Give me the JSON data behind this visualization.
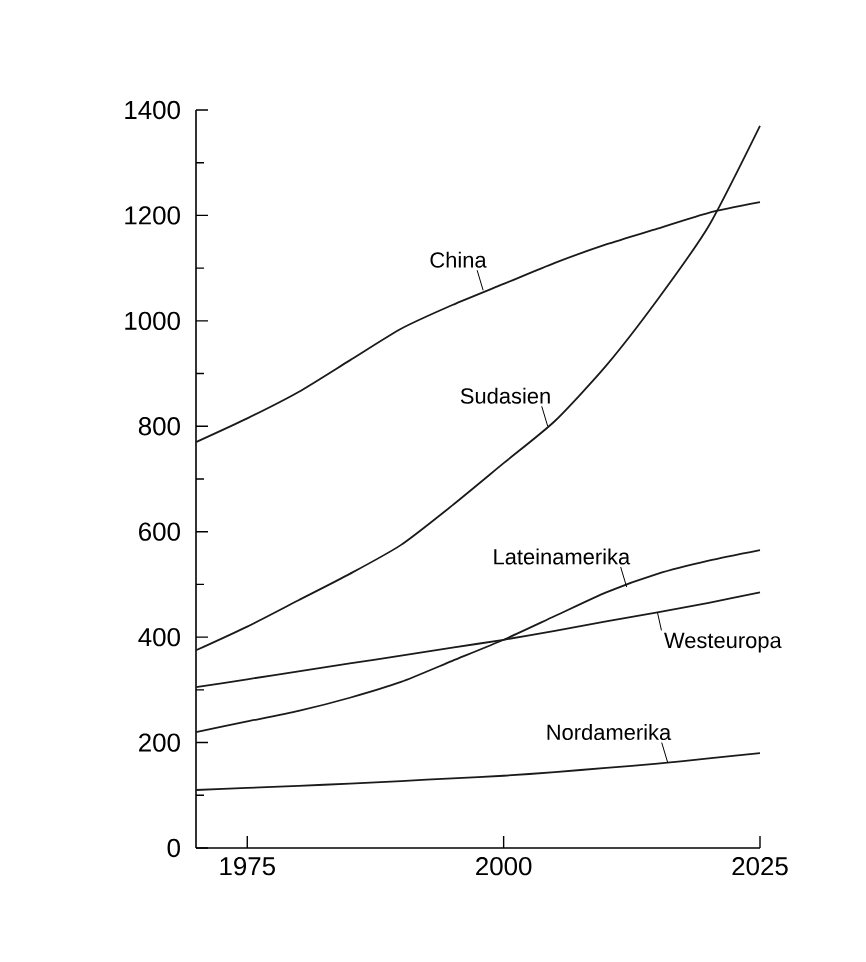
{
  "chart_data": {
    "type": "line",
    "x": [
      1970,
      1975,
      1980,
      1985,
      1990,
      1995,
      2000,
      2005,
      2010,
      2015,
      2020,
      2025
    ],
    "series": [
      {
        "color": "#1a1a1a",
        "values": [
          770,
          815,
          865,
          925,
          985,
          1030,
          1070,
          1110,
          1145,
          1175,
          1205,
          1225
        ]
      },
      {
        "color": "#1a1a1a",
        "values": [
          375,
          420,
          470,
          520,
          575,
          650,
          730,
          810,
          915,
          1040,
          1180,
          1370
        ]
      },
      {
        "color": "#1a1a1a",
        "values": [
          220,
          240,
          260,
          285,
          315,
          355,
          395,
          440,
          485,
          520,
          545,
          565
        ]
      },
      {
        "color": "#1a1a1a",
        "values": [
          305,
          320,
          335,
          350,
          365,
          380,
          395,
          412,
          430,
          447,
          465,
          485
        ]
      },
      {
        "color": "#1a1a1a",
        "values": [
          110,
          114,
          118,
          122,
          127,
          132,
          137,
          144,
          152,
          160,
          170,
          180
        ]
      }
    ],
    "annotations": [
      {
        "text": "China",
        "x": 1998,
        "y": 1058
      },
      {
        "text": "Sudasien",
        "x": 2004.3,
        "y": 800
      },
      {
        "text": "Lateinamerika",
        "x": 2012,
        "y": 495
      },
      {
        "text": "Westeuropa",
        "x": 2015,
        "y": 447
      },
      {
        "text": "Nordamerika",
        "x": 2016,
        "y": 162
      }
    ],
    "xlim": [
      1970,
      2025
    ],
    "ylim": [
      0,
      1400
    ],
    "xticks": [
      1975,
      2000,
      2025
    ],
    "yticks": [
      0,
      200,
      400,
      600,
      800,
      1000,
      1200,
      1400
    ],
    "grid": false,
    "marker": "none",
    "line_style": "solid"
  }
}
